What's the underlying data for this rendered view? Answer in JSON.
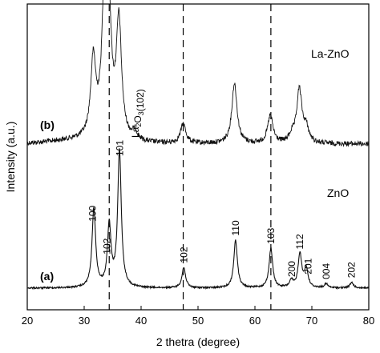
{
  "chart_data": {
    "type": "line",
    "xlabel": "2 thetra (degree)",
    "ylabel": "Intensity (a.u.)",
    "xlim": [
      20,
      80
    ],
    "xticks": [
      "20",
      "30",
      "40",
      "50",
      "60",
      "70",
      "80"
    ],
    "dashed_reference_x": [
      34.4,
      47.4,
      62.8
    ],
    "series": [
      {
        "name": "La-ZnO",
        "tag": "(b)",
        "peaks": [
          {
            "x": 31.6,
            "height": 0.55
          },
          {
            "x": 33.6,
            "height": 1.0
          },
          {
            "x": 34.3,
            "height": 0.8
          },
          {
            "x": 36.1,
            "height": 0.83
          },
          {
            "x": 38.9,
            "height": 0.06
          },
          {
            "x": 47.4,
            "height": 0.14
          },
          {
            "x": 56.4,
            "height": 0.43
          },
          {
            "x": 62.7,
            "height": 0.2
          },
          {
            "x": 66.5,
            "height": 0.05
          },
          {
            "x": 67.8,
            "height": 0.38
          },
          {
            "x": 69.0,
            "height": 0.1
          }
        ],
        "annotations": [
          {
            "x": 39.0,
            "text": "La2O3(102)",
            "main": "La",
            "sub": "2",
            "mid": "O",
            "sub2": "3",
            "rest": "(102)"
          }
        ]
      },
      {
        "name": "ZnO",
        "tag": "(a)",
        "peaks": [
          {
            "x": 31.7,
            "height": 0.58
          },
          {
            "x": 34.4,
            "height": 0.45
          },
          {
            "x": 36.2,
            "height": 1.0
          },
          {
            "x": 47.5,
            "height": 0.15
          },
          {
            "x": 56.6,
            "height": 0.35
          },
          {
            "x": 62.8,
            "height": 0.29
          },
          {
            "x": 66.4,
            "height": 0.05
          },
          {
            "x": 67.9,
            "height": 0.25
          },
          {
            "x": 69.0,
            "height": 0.14
          },
          {
            "x": 72.5,
            "height": 0.03
          },
          {
            "x": 77.0,
            "height": 0.04
          }
        ],
        "annotations": [
          {
            "x": 31.5,
            "text": "100"
          },
          {
            "x": 34.0,
            "text": "102"
          },
          {
            "x": 36.3,
            "text": "101"
          },
          {
            "x": 47.5,
            "text": "102"
          },
          {
            "x": 56.6,
            "text": "110"
          },
          {
            "x": 62.8,
            "text": "103"
          },
          {
            "x": 66.5,
            "text": "200"
          },
          {
            "x": 67.9,
            "text": "112"
          },
          {
            "x": 69.4,
            "text": "201"
          },
          {
            "x": 72.5,
            "text": "004"
          },
          {
            "x": 77.0,
            "text": "202"
          }
        ]
      }
    ]
  }
}
